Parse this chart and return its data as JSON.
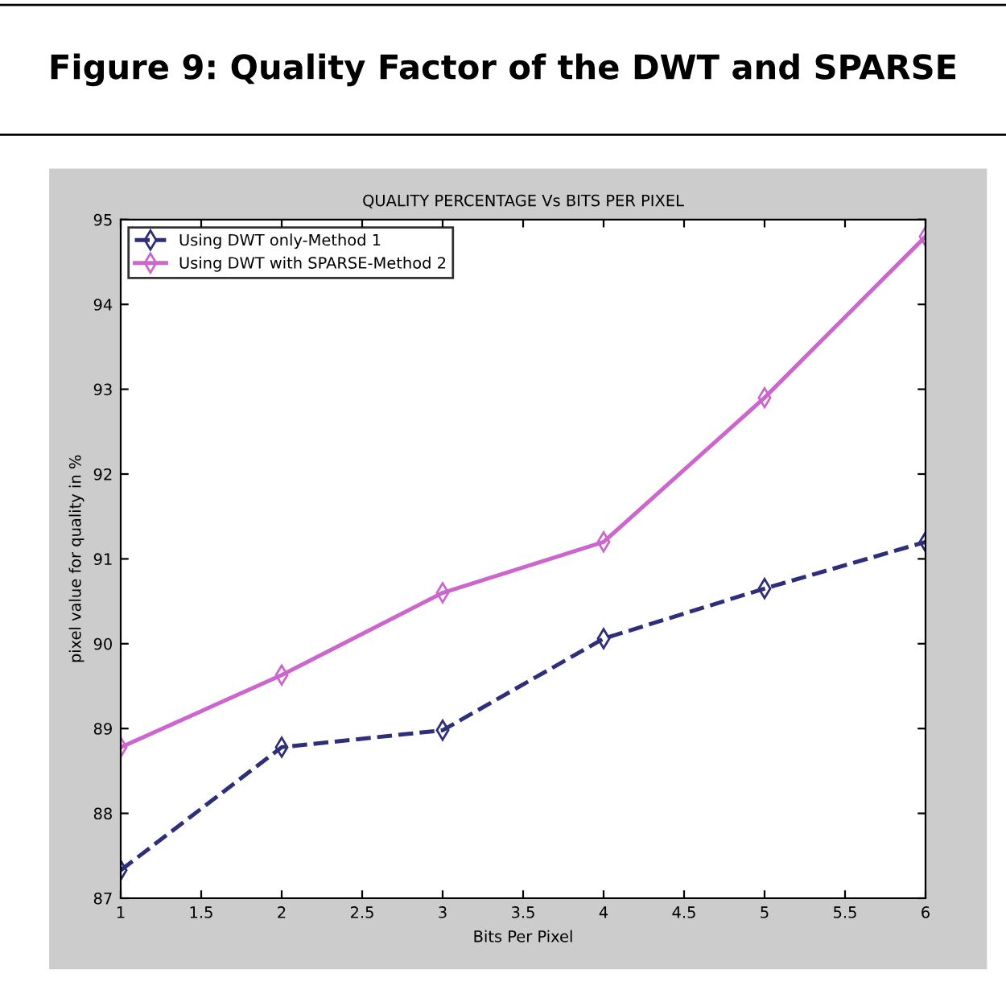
{
  "chart_data": {
    "type": "line",
    "title": "Figure 9: Quality Factor of the DWT and SPARSE",
    "subtitle": "QUALITY PERCENTAGE Vs BITS PER PIXEL",
    "xlabel": "Bits Per Pixel",
    "ylabel": "pixel value for quality in %",
    "x": [
      1,
      2,
      3,
      4,
      5,
      6
    ],
    "series": [
      {
        "name": "Using DWT only-Method 1",
        "color": "#2e2e7a",
        "line_style": "dashed",
        "values": [
          87.33,
          88.78,
          88.98,
          90.06,
          90.65,
          91.2
        ]
      },
      {
        "name": "Using DWT with SPARSE-Method 2",
        "color": "#cc66cc",
        "line_style": "solid",
        "values": [
          88.78,
          89.63,
          90.6,
          91.2,
          92.9,
          94.8
        ]
      }
    ],
    "xlim": [
      1,
      6
    ],
    "xticks": [
      1,
      1.5,
      2,
      2.5,
      3,
      3.5,
      4,
      4.5,
      5,
      5.5,
      6
    ],
    "ylim": [
      87,
      95
    ],
    "yticks": [
      87,
      88,
      89,
      90,
      91,
      92,
      93,
      94,
      95
    ],
    "marker": "diamond",
    "grid": false,
    "legend": "top left"
  }
}
